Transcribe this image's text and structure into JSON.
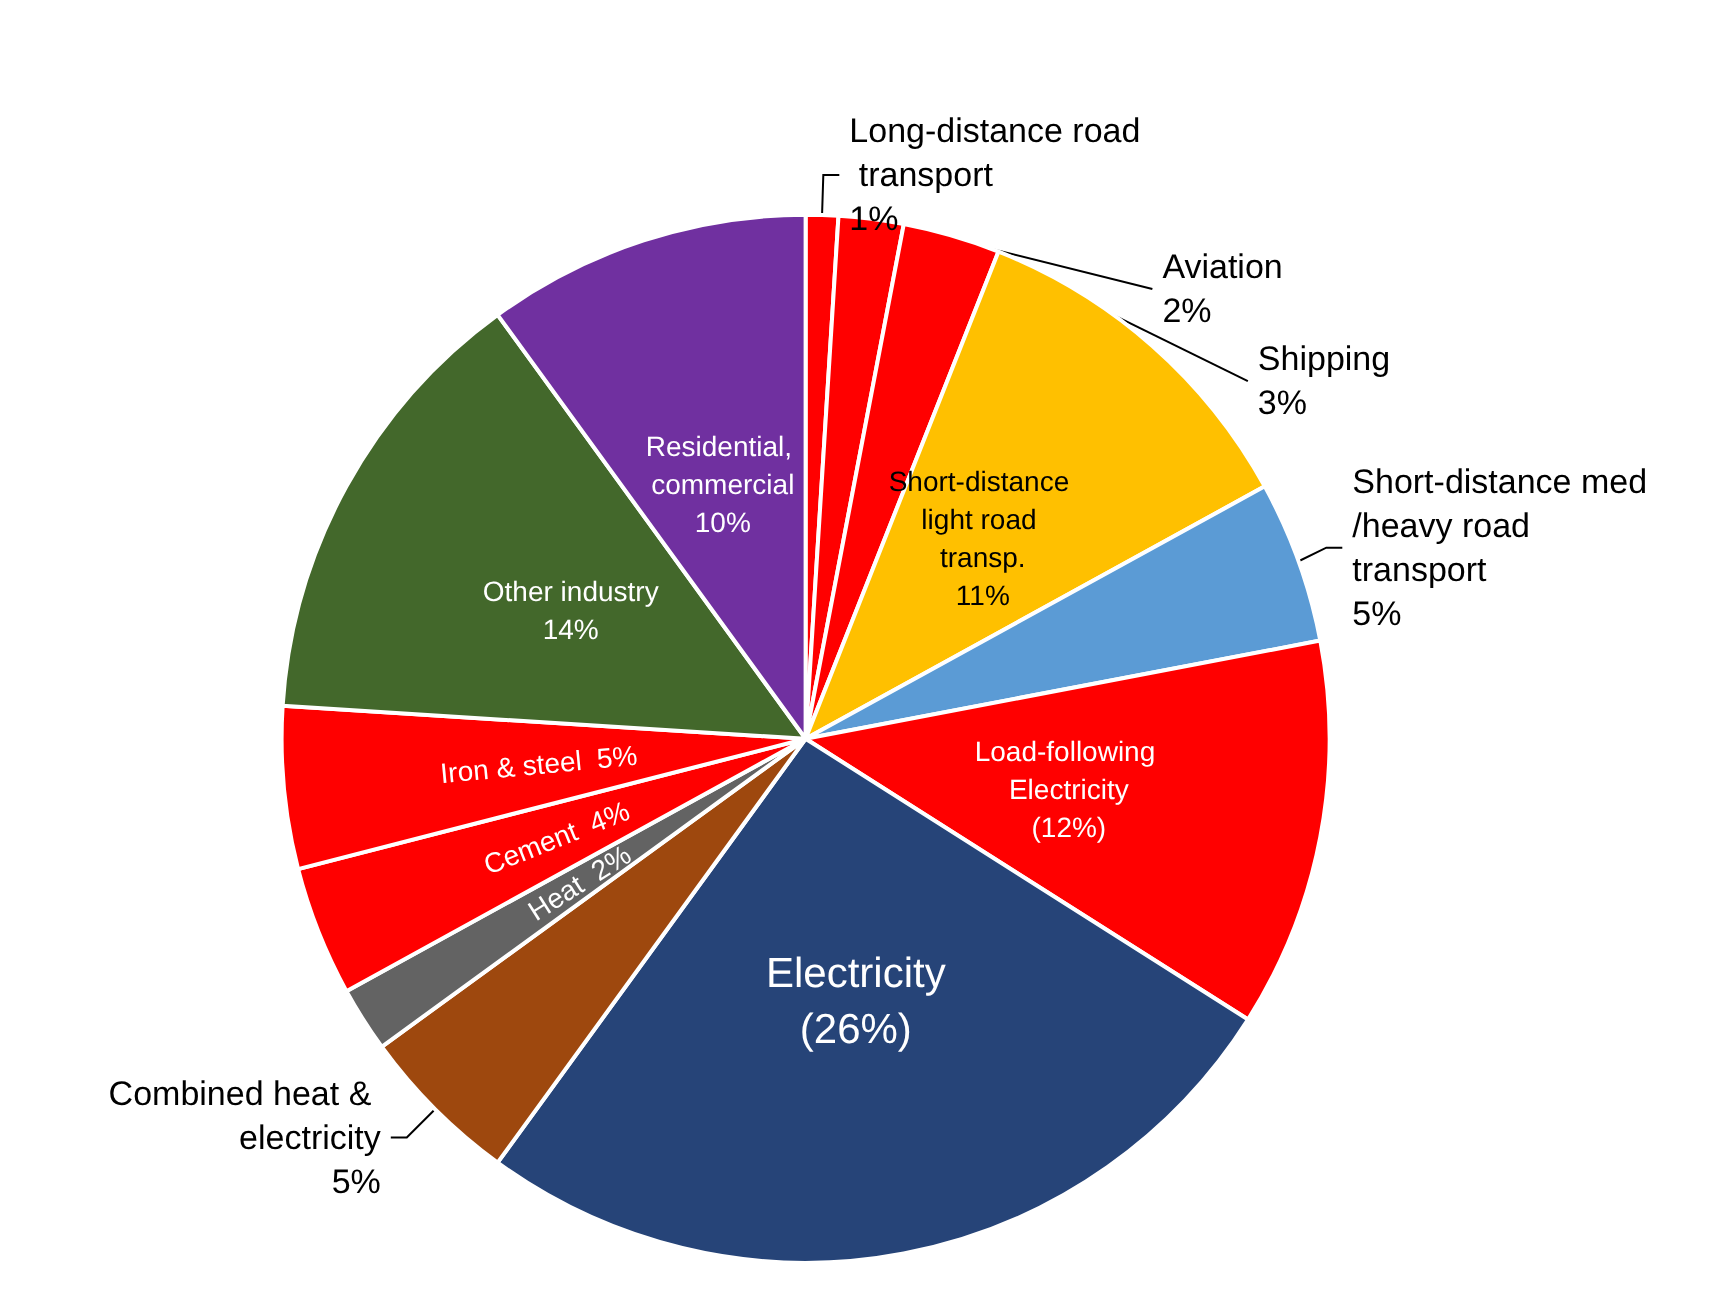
{
  "chart_data": {
    "type": "pie",
    "categories": [
      "Long-distance road transport",
      "Aviation",
      "Shipping",
      "Short-distance light road transp.",
      "Short-distance med/heavy road transport",
      "Load-following Electricity",
      "Electricity",
      "Combined heat & electricity",
      "Heat",
      "Cement",
      "Iron & steel",
      "Other industry",
      "Residential, commercial"
    ],
    "values": [
      1,
      2,
      3,
      11,
      5,
      12,
      26,
      5,
      2,
      4,
      5,
      14,
      10
    ],
    "value_labels": [
      "1%",
      "2%",
      "3%",
      "11%",
      "5%",
      "(12%)",
      "(26%)",
      "5%",
      "2%",
      "4%",
      "5%",
      "14%",
      "10%"
    ],
    "colors": [
      "#ff0000",
      "#ff0000",
      "#ff0000",
      "#ffc000",
      "#5b9bd5",
      "#ff0000",
      "#264478",
      "#9e480e",
      "#636363",
      "#ff0000",
      "#ff0000",
      "#43682b",
      "#7030a0"
    ]
  }
}
